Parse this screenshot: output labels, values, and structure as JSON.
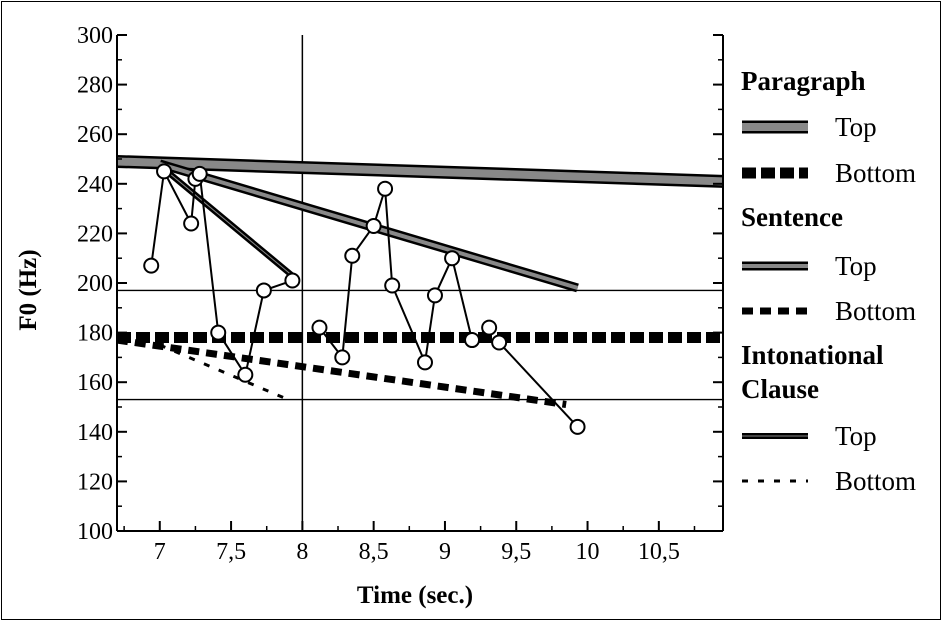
{
  "chart_data": {
    "type": "line",
    "xlabel": "Time (sec.)",
    "ylabel": "F0 (Hz)",
    "xlim": [
      6.7,
      10.95
    ],
    "ylim": [
      100,
      300
    ],
    "x_ticks": [
      7,
      7.5,
      8,
      8.5,
      9,
      9.5,
      10,
      10.5
    ],
    "x_tick_labels": [
      "7",
      "7,5",
      "8",
      "8,5",
      "9",
      "9,5",
      "10",
      "10,5"
    ],
    "y_ticks": [
      100,
      120,
      140,
      160,
      180,
      200,
      220,
      240,
      260,
      280,
      300
    ],
    "y_tick_labels": [
      "100",
      "120",
      "140",
      "160",
      "180",
      "200",
      "220",
      "240",
      "260",
      "280",
      "300"
    ],
    "grid": "none",
    "reference_lines": {
      "vertical_x": [
        8
      ],
      "horizontal_y": [
        197,
        153
      ]
    },
    "legend_placement": "right",
    "legend": [
      {
        "group": "Paragraph",
        "items": [
          {
            "label": "Top",
            "style": "thick-solid"
          },
          {
            "label": "Bottom",
            "style": "thick-dashed"
          }
        ]
      },
      {
        "group": "Sentence",
        "items": [
          {
            "label": "Top",
            "style": "medium-solid"
          },
          {
            "label": "Bottom",
            "style": "medium-dashed"
          }
        ]
      },
      {
        "group": "Intonational Clause",
        "group_lines": [
          "Intonational",
          "Clause"
        ],
        "items": [
          {
            "label": "Top",
            "style": "thin-solid"
          },
          {
            "label": "Bottom",
            "style": "thin-dashed"
          }
        ]
      }
    ],
    "f0_contours": [
      {
        "points": [
          [
            6.94,
            207
          ],
          [
            7.03,
            245
          ],
          [
            7.22,
            224
          ],
          [
            7.25,
            242
          ],
          [
            7.28,
            244
          ],
          [
            7.41,
            180
          ],
          [
            7.6,
            163
          ],
          [
            7.73,
            197
          ],
          [
            7.93,
            201
          ]
        ]
      },
      {
        "points": [
          [
            8.12,
            182
          ],
          [
            8.28,
            170
          ],
          [
            8.35,
            211
          ],
          [
            8.5,
            223
          ],
          [
            8.58,
            238
          ],
          [
            8.63,
            199
          ],
          [
            8.86,
            168
          ],
          [
            8.93,
            195
          ],
          [
            9.05,
            210
          ],
          [
            9.19,
            177
          ],
          [
            9.31,
            182
          ]
        ]
      },
      {
        "points": [
          [
            9.38,
            176
          ],
          [
            9.93,
            142
          ]
        ]
      }
    ],
    "trendlines": [
      {
        "kind": "paragraph-top",
        "points": [
          [
            6.7,
            249
          ],
          [
            10.95,
            241
          ]
        ]
      },
      {
        "kind": "paragraph-bottom",
        "points": [
          [
            6.7,
            178
          ],
          [
            10.95,
            178
          ]
        ]
      },
      {
        "kind": "sentence-top",
        "points": [
          [
            7.0,
            248
          ],
          [
            9.93,
            198
          ]
        ]
      },
      {
        "kind": "sentence-bottom",
        "points": [
          [
            6.7,
            177
          ],
          [
            9.85,
            151
          ]
        ]
      },
      {
        "kind": "clause-top",
        "points": [
          [
            7.03,
            246
          ],
          [
            7.95,
            202
          ]
        ]
      },
      {
        "kind": "clause-bottom",
        "points": [
          [
            7.0,
            175
          ],
          [
            7.9,
            153
          ]
        ]
      }
    ],
    "colors": {
      "line": "#000000",
      "trend_fill": "#888888",
      "marker_fill": "#ffffff"
    }
  }
}
